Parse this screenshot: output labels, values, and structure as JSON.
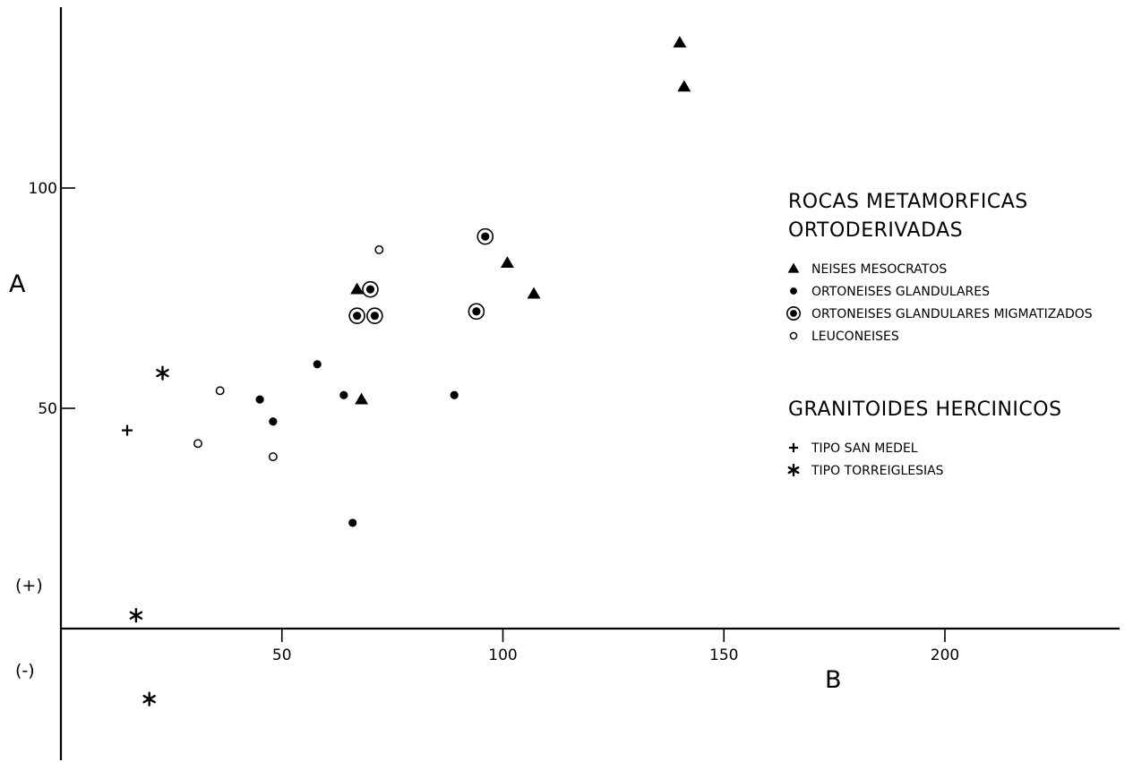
{
  "chart_data": {
    "type": "scatter",
    "xlabel": "B",
    "ylabel": "A",
    "xlim": [
      0,
      240
    ],
    "ylim": [
      -30,
      135
    ],
    "xticks": [
      50,
      100,
      150,
      200
    ],
    "yticks": [
      50,
      100
    ],
    "sign_labels": {
      "positive": "(+)",
      "negative": "(-)"
    },
    "grid": false,
    "legend": {
      "placement": "right",
      "groups": [
        {
          "title_lines": [
            "ROCAS METAMORFICAS",
            "ORTODERIVADAS"
          ],
          "entries": [
            0,
            1,
            2,
            3
          ]
        },
        {
          "title_lines": [
            "GRANITOIDES HERCINICOS"
          ],
          "entries": [
            4,
            5
          ]
        }
      ]
    },
    "series": [
      {
        "name": "NEISES MESOCRATOS",
        "marker": "triangle",
        "points": [
          {
            "x": 140,
            "y": 133
          },
          {
            "x": 141,
            "y": 123
          },
          {
            "x": 101,
            "y": 83
          },
          {
            "x": 107,
            "y": 76
          },
          {
            "x": 67,
            "y": 77
          },
          {
            "x": 68,
            "y": 52
          }
        ]
      },
      {
        "name": "ORTONEISES GLANDULARES",
        "marker": "dot",
        "points": [
          {
            "x": 58,
            "y": 60
          },
          {
            "x": 64,
            "y": 53
          },
          {
            "x": 45,
            "y": 52
          },
          {
            "x": 48,
            "y": 47
          },
          {
            "x": 89,
            "y": 53
          },
          {
            "x": 66,
            "y": 24
          }
        ]
      },
      {
        "name": "ORTONEISES GLANDULARES MIGMATIZADOS",
        "marker": "ringed-dot",
        "points": [
          {
            "x": 96,
            "y": 89
          },
          {
            "x": 70,
            "y": 77
          },
          {
            "x": 67,
            "y": 71
          },
          {
            "x": 71,
            "y": 71
          },
          {
            "x": 94,
            "y": 72
          }
        ]
      },
      {
        "name": "LEUCONEISES",
        "marker": "circle",
        "points": [
          {
            "x": 72,
            "y": 86
          },
          {
            "x": 36,
            "y": 54
          },
          {
            "x": 31,
            "y": 42
          },
          {
            "x": 48,
            "y": 39
          }
        ]
      },
      {
        "name": "TIPO SAN MEDEL",
        "marker": "plus",
        "points": [
          {
            "x": 15,
            "y": 45
          }
        ]
      },
      {
        "name": "TIPO TORREIGLESIAS",
        "marker": "asterisk",
        "points": [
          {
            "x": 23,
            "y": 58
          },
          {
            "x": 17,
            "y": 3
          },
          {
            "x": 20,
            "y": -16
          }
        ]
      }
    ]
  }
}
